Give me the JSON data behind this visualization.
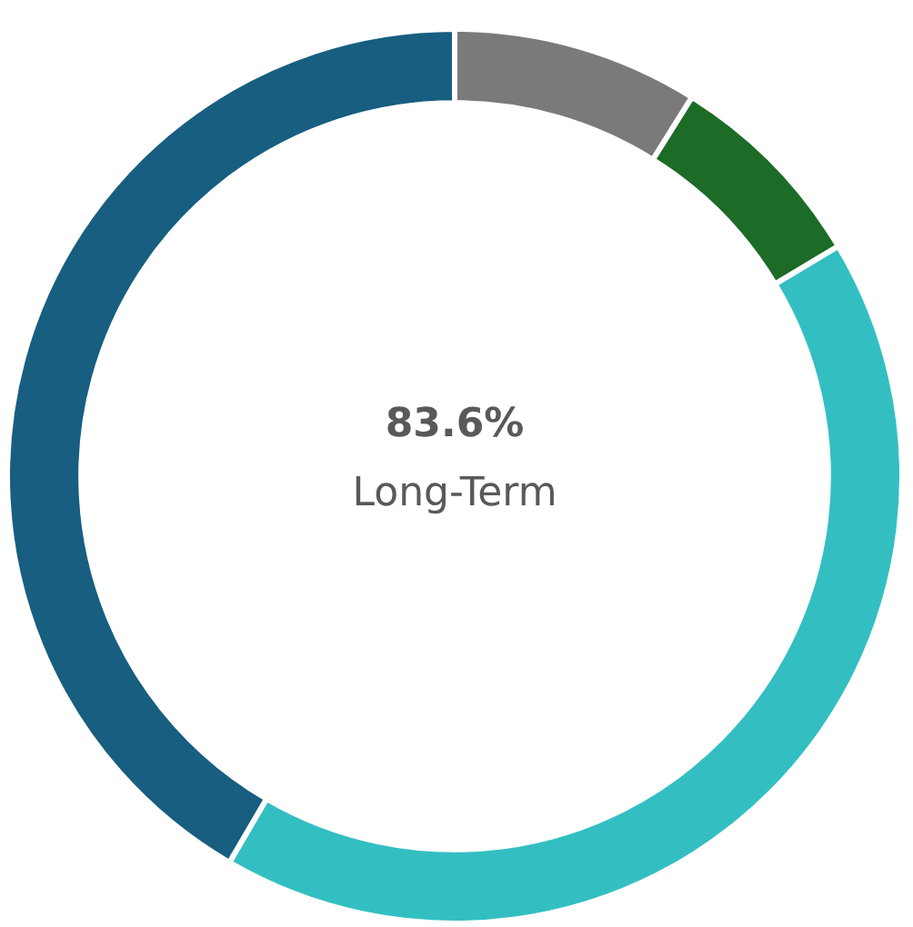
{
  "chart_data": {
    "type": "donut",
    "categories": [
      null,
      null,
      null,
      null
    ],
    "values": [
      8.9,
      7.5,
      42.0,
      41.6
    ],
    "colors": [
      "#7a7a7a",
      "#1c6b26",
      "#33bfc2",
      "#175e80"
    ],
    "annotations": [
      "83.6%",
      "Long-Term"
    ]
  }
}
